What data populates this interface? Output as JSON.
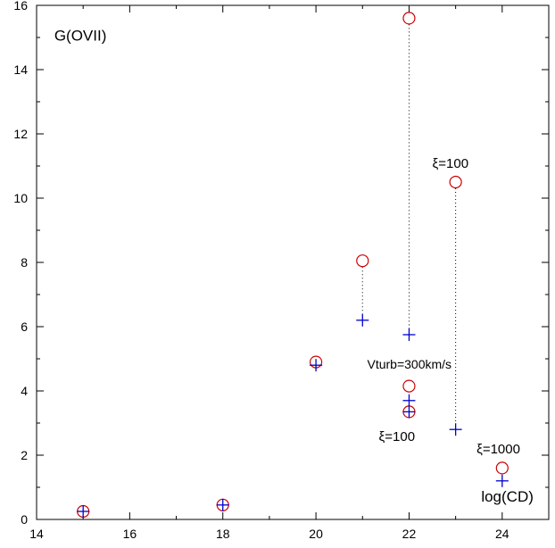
{
  "chart_data": {
    "type": "scatter",
    "xlim": [
      14,
      25
    ],
    "ylim": [
      0,
      16
    ],
    "x_ticks": [
      14,
      16,
      18,
      20,
      22,
      24
    ],
    "y_ticks": [
      0,
      2,
      4,
      6,
      8,
      10,
      12,
      14,
      16
    ],
    "grid": false,
    "series": [
      {
        "marker": "circle",
        "color": "#cc0000",
        "points": [
          {
            "x": 15,
            "y": 0.25
          },
          {
            "x": 18,
            "y": 0.45
          },
          {
            "x": 20,
            "y": 4.9
          },
          {
            "x": 21,
            "y": 8.05
          },
          {
            "x": 22,
            "y": 15.6
          },
          {
            "x": 22,
            "y": 4.15
          },
          {
            "x": 22,
            "y": 3.35
          },
          {
            "x": 23,
            "y": 10.5
          },
          {
            "x": 24,
            "y": 1.6
          }
        ]
      },
      {
        "marker": "plus",
        "color": "#0000cc",
        "points": [
          {
            "x": 15,
            "y": 0.25
          },
          {
            "x": 18,
            "y": 0.45
          },
          {
            "x": 20,
            "y": 4.8
          },
          {
            "x": 21,
            "y": 6.2
          },
          {
            "x": 22,
            "y": 5.75
          },
          {
            "x": 22,
            "y": 3.7
          },
          {
            "x": 22,
            "y": 3.35
          },
          {
            "x": 23,
            "y": 2.8
          },
          {
            "x": 24,
            "y": 1.2
          }
        ]
      }
    ],
    "connectors": [
      {
        "x": 21,
        "y1": 8.05,
        "y2": 6.2
      },
      {
        "x": 22,
        "y1": 15.6,
        "y2": 5.75
      },
      {
        "x": 23,
        "y1": 10.5,
        "y2": 2.8
      }
    ],
    "annotations": [
      {
        "text": "G(OVII)",
        "x": 14.38,
        "y": 14.9,
        "size": 17,
        "font": "sans"
      },
      {
        "text": "ξ=100",
        "x": 22.5,
        "y": 10.95,
        "size": 15,
        "font": "serif"
      },
      {
        "text": "Vturb=300km/s",
        "x": 21.1,
        "y": 4.7,
        "size": 14,
        "font": "sans"
      },
      {
        "text": "ξ=100",
        "x": 21.35,
        "y": 2.45,
        "size": 15,
        "font": "serif"
      },
      {
        "text": "ξ=1000",
        "x": 23.45,
        "y": 2.05,
        "size": 15,
        "font": "serif"
      },
      {
        "text": "log(CD)",
        "x": 23.55,
        "y": 0.55,
        "size": 17,
        "font": "sans"
      }
    ]
  }
}
